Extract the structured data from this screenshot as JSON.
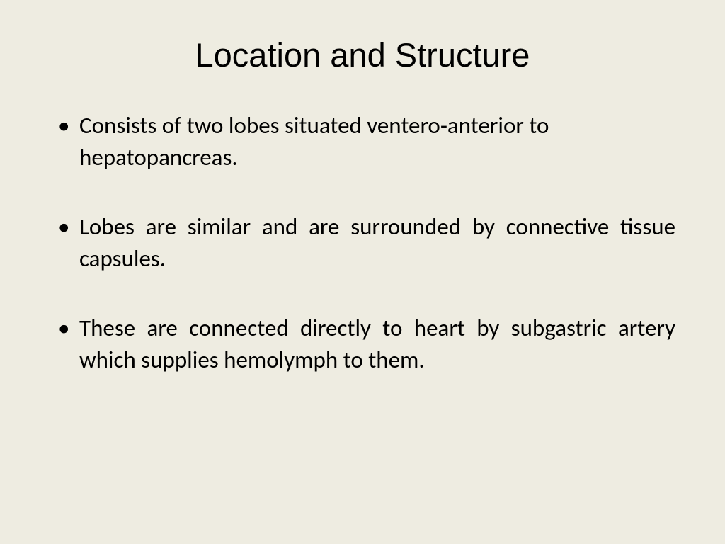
{
  "slide": {
    "title": "Location and Structure",
    "bullets": [
      "Consists of two lobes situated ventero-anterior to hepatopancreas.",
      "Lobes are similar and are surrounded by connective tissue capsules.",
      "These are connected directly to heart by subgastric artery which supplies hemolymph to them."
    ],
    "background_color": "#eeece1",
    "text_color": "#000000",
    "title_font": "Comic Sans MS",
    "body_font": "Calibri",
    "title_fontsize": 47,
    "body_fontsize": 33
  }
}
